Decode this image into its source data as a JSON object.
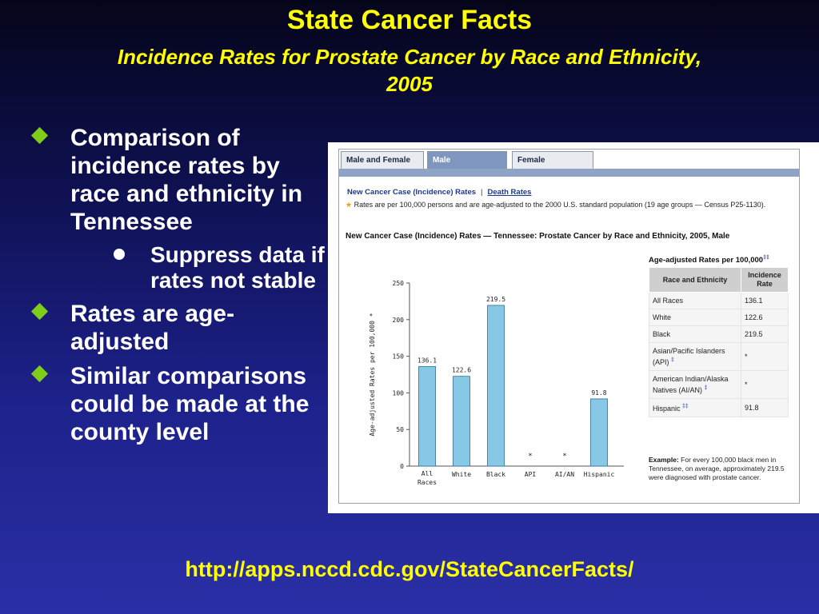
{
  "slide": {
    "title": "State Cancer Facts",
    "subtitle_line1": "Incidence Rates for Prostate Cancer by Race and Ethnicity,",
    "subtitle_line2": "2005",
    "bullets": [
      "Comparison of incidence rates by race and ethnicity in Tennessee",
      "Suppress data if rates not stable",
      "Rates are age-adjusted",
      "Similar comparisons could be made at the county level"
    ],
    "url": "http://apps.nccd.cdc.gov/StateCancerFacts/",
    "colors": {
      "title": "#ffff00",
      "bullet_marker": "#7fcc1a",
      "text": "#ffffff"
    }
  },
  "screenshot": {
    "tabs": [
      "Male and Female",
      "Male",
      "Female"
    ],
    "active_tab": "Male",
    "link_incidence": "New Cancer Case (Incidence) Rates",
    "link_separator": "|",
    "link_death": "Death Rates",
    "note": "Rates are per 100,000 persons and are age-adjusted to the 2000 U.S. standard population (19 age groups — Census P25-1130).",
    "star": "★",
    "heading": "New Cancer Case (Incidence) Rates — Tennessee: Prostate Cancer by Race and Ethnicity, 2005, Male",
    "table_title": "Age-adjusted Rates per 100,000",
    "table_title_mark": "‡‡",
    "table_headers": [
      "Race and Ethnicity",
      "Incidence Rate"
    ],
    "table_rows": [
      {
        "race": "All Races",
        "mark": "",
        "rate": "136.1"
      },
      {
        "race": "White",
        "mark": "",
        "rate": "122.6"
      },
      {
        "race": "Black",
        "mark": "",
        "rate": "219.5"
      },
      {
        "race": "Asian/Pacific Islanders (API)",
        "mark": "‡",
        "rate": "*"
      },
      {
        "race": "American Indian/Alaska Natives (AI/AN)",
        "mark": "‡",
        "rate": "*"
      },
      {
        "race": "Hispanic",
        "mark": "‡‡",
        "rate": "91.8"
      }
    ],
    "example_label": "Example:",
    "example_text": "For every 100,000 black men in Tennessee, on average, approximately 219.5 were diagnosed with prostate cancer."
  },
  "chart_data": {
    "type": "bar",
    "categories": [
      "All Races",
      "White",
      "Black",
      "API",
      "AI/AN",
      "Hispanic"
    ],
    "values": [
      136.1,
      122.6,
      219.5,
      null,
      null,
      91.8
    ],
    "data_labels": [
      "136.1",
      "122.6",
      "219.5",
      "*",
      "*",
      "91.8"
    ],
    "ylabel": "Age-adjusted Rates per 100,000 *",
    "ylim": [
      0,
      250
    ],
    "yticks": [
      0,
      50,
      100,
      150,
      200,
      250
    ],
    "bar_color": "#87c8e6"
  }
}
